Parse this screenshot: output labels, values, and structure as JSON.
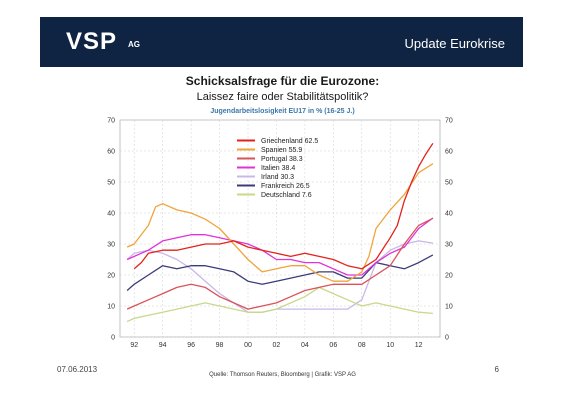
{
  "header": {
    "logo": "VSP",
    "logo_sub": "AG",
    "title": "Update Eurokrise"
  },
  "titles": {
    "main": "Schicksalsfrage für die Eurozone:",
    "sub": "Laissez faire oder Stabilitätspolitik?"
  },
  "footer": {
    "date": "07.06.2013",
    "source": "Quelle: Thomson Reuters, Bloomberg | Grafik: VSP AG",
    "page": "6"
  },
  "chart_data": {
    "type": "line",
    "title": "Jugendarbeitslosigkeit EU17 in % (16-25 J.)",
    "ylim": [
      0,
      70
    ],
    "xlim": [
      1991.0,
      2013.5
    ],
    "y_ticks": [
      0,
      10,
      20,
      30,
      40,
      50,
      60,
      70
    ],
    "x_ticks": [
      {
        "value": 1992,
        "label": "92"
      },
      {
        "value": 1994,
        "label": "94"
      },
      {
        "value": 1996,
        "label": "96"
      },
      {
        "value": 1998,
        "label": "98"
      },
      {
        "value": 2000,
        "label": "00"
      },
      {
        "value": 2002,
        "label": "02"
      },
      {
        "value": 2004,
        "label": "04"
      },
      {
        "value": 2006,
        "label": "06"
      },
      {
        "value": 2008,
        "label": "08"
      },
      {
        "value": 2010,
        "label": "10"
      },
      {
        "value": 2012,
        "label": "12"
      }
    ],
    "grid": true,
    "legend_position": "top-center",
    "series": [
      {
        "name": "Griechenland 62.5",
        "color": "#e2231a",
        "x": [
          1992,
          1992.5,
          1993,
          1994,
          1995,
          1996,
          1997,
          1998,
          1999,
          2000,
          2001,
          2002,
          2003,
          2004,
          2005,
          2006,
          2007,
          2008,
          2009,
          2010,
          2010.5,
          2011,
          2011.5,
          2012,
          2012.5,
          2013
        ],
        "y": [
          22,
          24,
          27,
          28,
          28,
          29,
          30,
          30,
          31,
          29,
          28,
          27,
          26,
          27,
          26,
          25,
          23,
          22,
          25,
          32,
          36,
          44,
          50,
          55,
          59,
          62.5
        ]
      },
      {
        "name": "Spanien 55.9",
        "color": "#f0a43a",
        "x": [
          1991.5,
          1992,
          1993,
          1993.5,
          1994,
          1995,
          1996,
          1997,
          1998,
          1999,
          2000,
          2001,
          2002,
          2003,
          2004,
          2005,
          2006,
          2007,
          2008,
          2008.5,
          2009,
          2010,
          2011,
          2012,
          2013
        ],
        "y": [
          29,
          30,
          36,
          42,
          43,
          41,
          40,
          38,
          35,
          30,
          25,
          21,
          22,
          23,
          23,
          20,
          18,
          18,
          21,
          26,
          35,
          41,
          46,
          53,
          55.9
        ]
      },
      {
        "name": "Portugal 38.3",
        "color": "#d9535a",
        "x": [
          1991.5,
          1992,
          1993,
          1994,
          1995,
          1996,
          1997,
          1998,
          1999,
          2000,
          2001,
          2002,
          2003,
          2004,
          2005,
          2006,
          2007,
          2008,
          2009,
          2010,
          2011,
          2012,
          2013
        ],
        "y": [
          9,
          10,
          12,
          14,
          16,
          17,
          16,
          13,
          11,
          9,
          10,
          11,
          13,
          15,
          16,
          17,
          17,
          17,
          20,
          23,
          30,
          36,
          38.3
        ]
      },
      {
        "name": "Italien 38.4",
        "color": "#e033d6",
        "x": [
          1991.5,
          1992,
          1993,
          1994,
          1995,
          1996,
          1997,
          1998,
          1999,
          2000,
          2001,
          2002,
          2003,
          2004,
          2005,
          2006,
          2007,
          2008,
          2009,
          2010,
          2011,
          2012,
          2013
        ],
        "y": [
          25,
          26,
          28,
          31,
          32,
          33,
          33,
          32,
          31,
          30,
          28,
          25,
          25,
          24,
          24,
          22,
          20,
          20,
          24,
          27,
          29,
          35,
          38.4
        ]
      },
      {
        "name": "Irland 30.3",
        "color": "#c9b7e8",
        "x": [
          1991.5,
          1992,
          1993,
          1994,
          1995,
          1996,
          1997,
          1998,
          1999,
          2000,
          2001,
          2002,
          2003,
          2004,
          2005,
          2006,
          2007,
          2008,
          2009,
          2010,
          2011,
          2012,
          2013
        ],
        "y": [
          25,
          27,
          28,
          27,
          25,
          22,
          18,
          14,
          11,
          8,
          8,
          9,
          9,
          9,
          9,
          9,
          9,
          12,
          24,
          28,
          30,
          31,
          30.3
        ]
      },
      {
        "name": "Frankreich 26.5",
        "color": "#3b3b7a",
        "x": [
          1991.5,
          1992,
          1993,
          1994,
          1995,
          1996,
          1997,
          1998,
          1999,
          2000,
          2001,
          2002,
          2003,
          2004,
          2005,
          2006,
          2007,
          2008,
          2009,
          2010,
          2011,
          2012,
          2013
        ],
        "y": [
          15,
          17,
          20,
          23,
          22,
          23,
          23,
          22,
          21,
          18,
          17,
          18,
          19,
          20,
          21,
          21,
          19,
          19,
          24,
          23,
          22,
          24,
          26.5
        ]
      },
      {
        "name": "Deutschland 7.6",
        "color": "#c9d88a",
        "x": [
          1991.5,
          1992,
          1993,
          1994,
          1995,
          1996,
          1997,
          1998,
          1999,
          2000,
          2001,
          2002,
          2003,
          2004,
          2005,
          2006,
          2007,
          2008,
          2009,
          2010,
          2011,
          2012,
          2013
        ],
        "y": [
          5,
          6,
          7,
          8,
          9,
          10,
          11,
          10,
          9,
          8,
          8,
          9,
          11,
          13,
          16,
          14,
          12,
          10,
          11,
          10,
          9,
          8,
          7.6
        ]
      }
    ]
  }
}
